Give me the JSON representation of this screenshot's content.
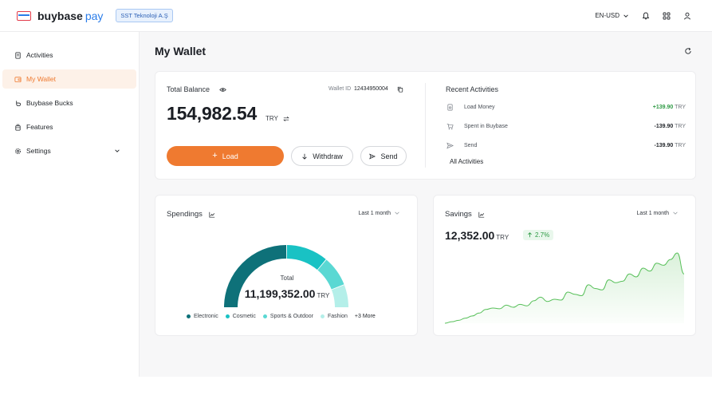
{
  "topbar": {
    "brand": "buybase",
    "brand_suffix": "pay",
    "company": "SST Teknoloji A.Ş",
    "locale": "EN-USD",
    "icons": [
      "bell-icon",
      "apps-grid-icon",
      "user-icon"
    ]
  },
  "sidebar": {
    "items": [
      {
        "label": "Activities",
        "icon": "receipt-icon",
        "active": false
      },
      {
        "label": "My Wallet",
        "icon": "wallet-icon",
        "active": true
      },
      {
        "label": "Buybase Bucks",
        "icon": "coins-icon",
        "active": false
      },
      {
        "label": "Features",
        "icon": "gift-icon",
        "active": false
      },
      {
        "label": "Settings",
        "icon": "gear-icon",
        "active": false
      }
    ]
  },
  "page": {
    "title": "My Wallet"
  },
  "wallet": {
    "total_label": "Total Balance",
    "wallet_id_label": "Wallet ID",
    "wallet_id": "12434950004",
    "balance": "154,982.54",
    "currency": "TRY",
    "load_label": "Load",
    "withdraw_label": "Withdraw",
    "send_label": "Send"
  },
  "recent": {
    "title": "Recent Activities",
    "items": [
      {
        "name": "Load Money",
        "amount": "+139.90",
        "currency": "TRY",
        "positive": true,
        "icon": "load-icon"
      },
      {
        "name": "Spent in Buybase",
        "amount": "-139.90",
        "currency": "TRY",
        "positive": false,
        "icon": "cart-icon"
      },
      {
        "name": "Send",
        "amount": "-139.90",
        "currency": "TRY",
        "positive": false,
        "icon": "send-icon"
      }
    ],
    "all_label": "All Activities"
  },
  "spendings": {
    "title": "Spendings",
    "period": "Last 1 month",
    "total_label": "Total",
    "total": "11,199,352.00",
    "currency": "TRY",
    "legend": [
      {
        "label": "Electronic",
        "color": "#0e7179"
      },
      {
        "label": "Cosmetic",
        "color": "#19c2c4"
      },
      {
        "label": "Sports & Outdoor",
        "color": "#5ad8d3"
      },
      {
        "label": "Fashion",
        "color": "#b4efe9"
      }
    ],
    "more_label": "+3 More"
  },
  "chart_data": {
    "type": "pie",
    "categories": [
      "Electronic",
      "Cosmetic",
      "Sports & Outdoor",
      "Fashion"
    ],
    "values": [
      50,
      22,
      16,
      12
    ]
  },
  "savings": {
    "title": "Savings",
    "period": "Last 1 month",
    "value": "12,352.00",
    "currency": "TRY",
    "change": "2.7%",
    "line_color": "#58c05a",
    "trend": [
      2,
      4,
      6,
      9,
      12,
      16,
      21,
      23,
      22,
      27,
      24,
      28,
      26,
      33,
      38,
      32,
      35,
      34,
      45,
      42,
      40,
      55,
      50,
      48,
      62,
      58,
      60,
      70,
      66,
      78,
      74,
      85,
      82,
      90,
      99,
      70
    ]
  }
}
